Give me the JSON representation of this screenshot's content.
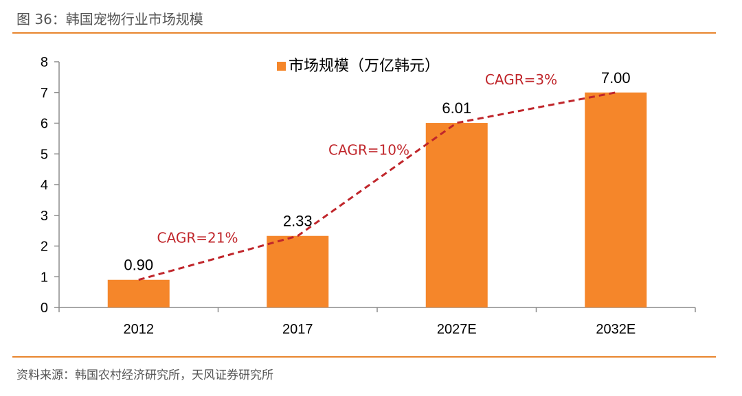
{
  "figure": {
    "title": "图 36：韩国宠物行业市场规模",
    "source": "资料来源：韩国农村经济研究所，天风证券研究所"
  },
  "colors": {
    "bar": "#f5862a",
    "trend": "#c0262b",
    "rule": "#e8852d",
    "axis": "#8c8c8c"
  },
  "chart_data": {
    "type": "bar",
    "title": "",
    "xlabel": "",
    "ylabel": "",
    "categories": [
      "2012",
      "2017",
      "2027E",
      "2032E"
    ],
    "series": [
      {
        "name": "市场规模（万亿韩元）",
        "values": [
          0.9,
          2.33,
          6.01,
          7.0
        ]
      }
    ],
    "data_labels": [
      "0.90",
      "2.33",
      "6.01",
      "7.00"
    ],
    "ylim": [
      0,
      8
    ],
    "yticks": [
      "0",
      "1",
      "2",
      "3",
      "4",
      "5",
      "6",
      "7",
      "8"
    ],
    "legend": {
      "label": "市场规模（万亿韩元）",
      "position": "top-center"
    },
    "grid": false,
    "annotations": [
      {
        "text": "CAGR=21%",
        "between": [
          "2012",
          "2017"
        ]
      },
      {
        "text": "CAGR=10%",
        "between": [
          "2017",
          "2027E"
        ]
      },
      {
        "text": "CAGR=3%",
        "between": [
          "2027E",
          "2032E"
        ]
      }
    ]
  }
}
